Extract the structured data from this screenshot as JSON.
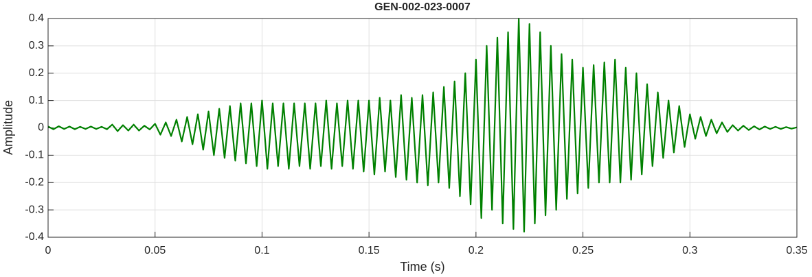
{
  "chart_data": {
    "type": "line",
    "title": "GEN-002-023-0007",
    "x_label": "Time (s)",
    "y_label": "Amplitude",
    "xlim": [
      0,
      0.35
    ],
    "ylim": [
      -0.4,
      0.4
    ],
    "xticks": [
      0,
      0.05,
      0.1,
      0.15,
      0.2,
      0.25,
      0.3,
      0.35
    ],
    "yticks": [
      -0.4,
      -0.3,
      -0.2,
      -0.1,
      0,
      0.1,
      0.2,
      0.3,
      0.4
    ],
    "grid": true,
    "x": [
      0,
      0.0025,
      0.005,
      0.0075,
      0.01,
      0.0125,
      0.015,
      0.0175,
      0.02,
      0.0225,
      0.025,
      0.0275,
      0.03,
      0.0325,
      0.035,
      0.0375,
      0.04,
      0.0425,
      0.045,
      0.0475,
      0.05,
      0.0525,
      0.055,
      0.0575,
      0.06,
      0.0625,
      0.065,
      0.0675,
      0.07,
      0.0725,
      0.075,
      0.0775,
      0.08,
      0.0825,
      0.085,
      0.0875,
      0.09,
      0.0925,
      0.095,
      0.0975,
      0.1,
      0.1025,
      0.105,
      0.1075,
      0.11,
      0.1125,
      0.115,
      0.1175,
      0.12,
      0.1225,
      0.125,
      0.1275,
      0.13,
      0.1325,
      0.135,
      0.1375,
      0.14,
      0.1425,
      0.145,
      0.1475,
      0.15,
      0.1525,
      0.155,
      0.1575,
      0.16,
      0.1625,
      0.165,
      0.1675,
      0.17,
      0.1725,
      0.175,
      0.1775,
      0.18,
      0.1825,
      0.185,
      0.1875,
      0.19,
      0.1925,
      0.195,
      0.1975,
      0.2,
      0.2025,
      0.205,
      0.2075,
      0.21,
      0.2125,
      0.215,
      0.2175,
      0.22,
      0.2225,
      0.225,
      0.2275,
      0.23,
      0.2325,
      0.235,
      0.2375,
      0.24,
      0.2425,
      0.245,
      0.2475,
      0.25,
      0.2525,
      0.255,
      0.2575,
      0.26,
      0.2625,
      0.265,
      0.2675,
      0.27,
      0.2725,
      0.275,
      0.2775,
      0.28,
      0.2825,
      0.285,
      0.2875,
      0.29,
      0.2925,
      0.295,
      0.2975,
      0.3,
      0.3025,
      0.305,
      0.3075,
      0.31,
      0.3125,
      0.315,
      0.3175,
      0.32,
      0.3225,
      0.325,
      0.3275,
      0.33,
      0.3325,
      0.335,
      0.3375,
      0.34,
      0.3425,
      0.345,
      0.3475,
      0.35
    ],
    "series": [
      {
        "color": "#008000",
        "values": [
          0.005,
          -0.005,
          0.006,
          -0.004,
          0.005,
          -0.005,
          0.004,
          -0.004,
          0.005,
          -0.004,
          0.004,
          -0.005,
          0.012,
          -0.012,
          0.01,
          -0.01,
          0.012,
          -0.01,
          0.008,
          -0.006,
          0.015,
          -0.025,
          0.02,
          -0.03,
          0.03,
          -0.05,
          0.04,
          -0.06,
          0.05,
          -0.08,
          0.06,
          -0.1,
          0.07,
          -0.11,
          0.08,
          -0.12,
          0.09,
          -0.13,
          0.09,
          -0.14,
          0.1,
          -0.15,
          0.09,
          -0.14,
          0.09,
          -0.15,
          0.09,
          -0.14,
          0.09,
          -0.15,
          0.09,
          -0.14,
          0.1,
          -0.15,
          0.09,
          -0.14,
          0.1,
          -0.15,
          0.1,
          -0.16,
          0.1,
          -0.17,
          0.11,
          -0.16,
          0.1,
          -0.18,
          0.12,
          -0.19,
          0.11,
          -0.2,
          0.12,
          -0.21,
          0.13,
          -0.2,
          0.15,
          -0.22,
          0.17,
          -0.25,
          0.2,
          -0.28,
          0.25,
          -0.33,
          0.3,
          -0.3,
          0.33,
          -0.35,
          0.35,
          -0.37,
          0.4,
          -0.38,
          0.38,
          -0.35,
          0.35,
          -0.32,
          0.3,
          -0.3,
          0.27,
          -0.26,
          0.25,
          -0.24,
          0.22,
          -0.22,
          0.23,
          -0.2,
          0.24,
          -0.2,
          0.25,
          -0.2,
          0.22,
          -0.19,
          0.2,
          -0.17,
          0.16,
          -0.14,
          0.13,
          -0.11,
          0.1,
          -0.09,
          0.08,
          -0.07,
          0.05,
          -0.04,
          0.04,
          -0.03,
          0.03,
          -0.02,
          0.02,
          -0.015,
          0.01,
          -0.01,
          0.008,
          -0.008,
          0.006,
          -0.006,
          0.005,
          -0.004,
          0.004,
          -0.004,
          0.003,
          -0.003,
          0.002
        ]
      }
    ]
  }
}
